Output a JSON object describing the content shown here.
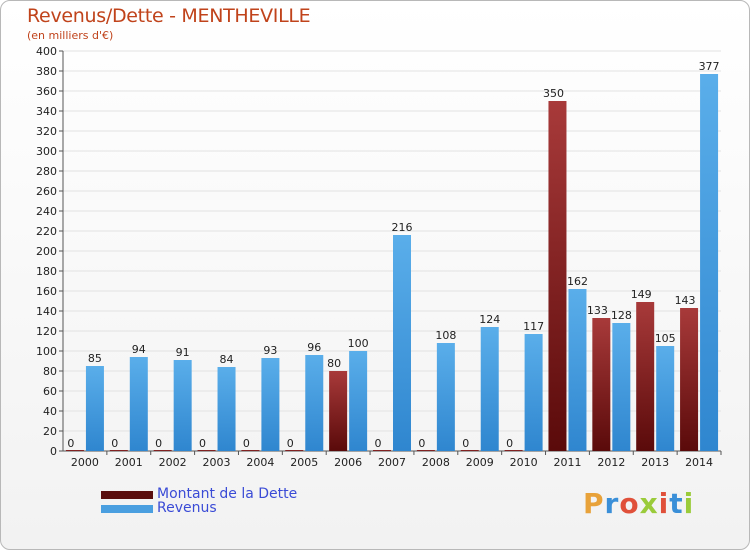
{
  "header": {
    "title": "Revenus/Dette - MENTHEVILLE",
    "subtitle": "(en milliers d'€)"
  },
  "chart_data": {
    "type": "bar",
    "categories": [
      "2000",
      "2001",
      "2002",
      "2003",
      "2004",
      "2005",
      "2006",
      "2007",
      "2008",
      "2009",
      "2010",
      "2011",
      "2012",
      "2013",
      "2014"
    ],
    "series": [
      {
        "name": "Montant de la Dette",
        "color": "#7a1a1a",
        "values": [
          0,
          0,
          0,
          0,
          0,
          0,
          80,
          0,
          0,
          0,
          0,
          350,
          133,
          149,
          143
        ]
      },
      {
        "name": "Revenus",
        "color": "#4a9fe0",
        "values": [
          85,
          94,
          91,
          84,
          93,
          96,
          100,
          216,
          108,
          124,
          117,
          162,
          128,
          105,
          377
        ]
      }
    ],
    "ylim": [
      0,
      400
    ],
    "yticks": [
      0,
      20,
      40,
      60,
      80,
      100,
      120,
      140,
      160,
      180,
      200,
      220,
      240,
      260,
      280,
      300,
      320,
      340,
      360,
      380,
      400
    ],
    "grid": true,
    "xlabel": "",
    "ylabel": ""
  },
  "legend": {
    "items": [
      {
        "label": "Montant de la Dette",
        "color": "#7a1a1a"
      },
      {
        "label": "Revenus",
        "color": "#4a9fe0"
      }
    ]
  },
  "logo": {
    "text": "Proxiti",
    "colors": [
      "#e8a23a",
      "#3a8fd8",
      "#e0503a",
      "#9acb3a",
      "#e0503a",
      "#3a8fd8",
      "#9acb3a"
    ]
  }
}
